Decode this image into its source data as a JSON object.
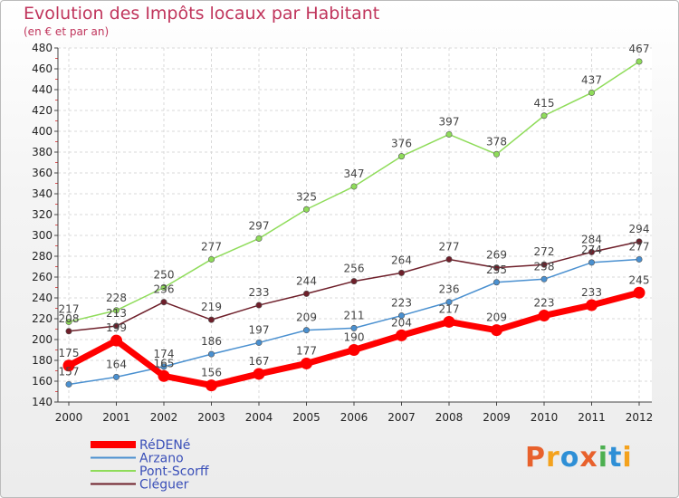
{
  "title": "Evolution des Impôts locaux par Habitant",
  "subtitle": "(en € et par an)",
  "logo": {
    "text": "Proxiti",
    "colors": [
      "#e8612c",
      "#f4a21d",
      "#2e8fd6",
      "#e8612c",
      "#4caf50",
      "#2e8fd6",
      "#f4a21d"
    ]
  },
  "chart_data": {
    "type": "line",
    "x": [
      "2000",
      "2001",
      "2002",
      "2003",
      "2004",
      "2005",
      "2006",
      "2007",
      "2008",
      "2009",
      "2010",
      "2011",
      "2012"
    ],
    "ylim": [
      140,
      480
    ],
    "yticks": [
      140,
      160,
      180,
      200,
      220,
      240,
      260,
      280,
      300,
      320,
      340,
      360,
      380,
      400,
      420,
      440,
      460,
      480
    ],
    "grid": true,
    "legend": "bottom-left",
    "series": [
      {
        "name": "RéDENé",
        "color": "#ff0000",
        "values": [
          175,
          199,
          165,
          156,
          167,
          177,
          190,
          204,
          217,
          209,
          223,
          233,
          245
        ]
      },
      {
        "name": "Arzano",
        "color": "#4a90d0",
        "values": [
          157,
          164,
          174,
          186,
          197,
          209,
          211,
          223,
          236,
          255,
          258,
          274,
          277
        ]
      },
      {
        "name": "Pont-Scorff",
        "color": "#8fdc5a",
        "values": [
          217,
          228,
          250,
          277,
          297,
          325,
          347,
          376,
          397,
          378,
          415,
          437,
          467
        ]
      },
      {
        "name": "Cléguer",
        "color": "#6e1f2a",
        "values": [
          208,
          213,
          236,
          219,
          233,
          244,
          256,
          264,
          277,
          269,
          272,
          284,
          294
        ]
      }
    ]
  }
}
